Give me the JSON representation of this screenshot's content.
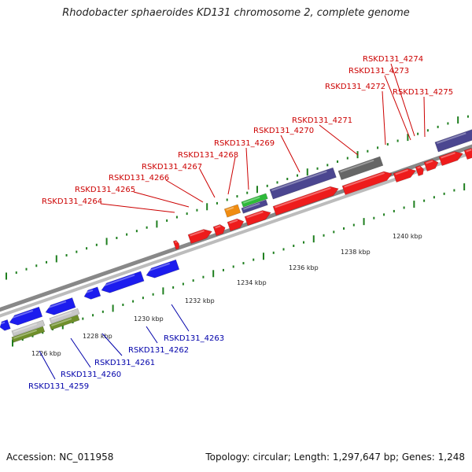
{
  "title": "Rhodobacter sphaeroides KD131 chromosome 2, complete genome",
  "footer": {
    "accession": "Accession: NC_011958",
    "summary": "Topology: circular; Length: 1,297,647 bp; Genes: 1,248"
  },
  "colors": {
    "forward_gene": "#ee1c1c",
    "reverse_gene": "#1c1cee",
    "gray_gene": "#666666",
    "purple_gene": "#4b4690",
    "green_gene": "#2eba3a",
    "orange_gene": "#f08c10",
    "olive_gene": "#6f8f2a",
    "forward_label": "#cc0000",
    "reverse_label": "#0000aa",
    "tick": "#1f7f1f"
  },
  "scale_labels": [
    "1226 kbp",
    "1228 kbp",
    "1230 kbp",
    "1232 kbp",
    "1234 kbp",
    "1236 kbp",
    "1238 kbp",
    "1240 kbp"
  ],
  "forward_gene_labels": [
    "RSKD131_4264",
    "RSKD131_4265",
    "RSKD131_4266",
    "RSKD131_4267",
    "RSKD131_4268",
    "RSKD131_4269",
    "RSKD131_4270",
    "RSKD131_4271",
    "RSKD131_4272",
    "RSKD131_4273",
    "RSKD131_4274",
    "RSKD131_4275"
  ],
  "reverse_gene_labels": [
    "RSKD131_4259",
    "RSKD131_4260",
    "RSKD131_4261",
    "RSKD131_4262",
    "RSKD131_4263"
  ]
}
